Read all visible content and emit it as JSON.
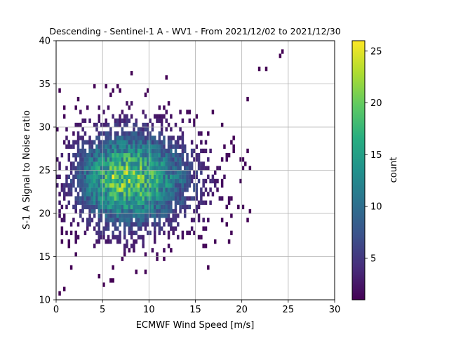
{
  "chart_data": {
    "type": "heatmap",
    "subtype": "2d-histogram",
    "title": "Descending - Sentinel-1 A - WV1 - From 2021/12/02 to 2021/12/30",
    "xlabel": "ECMWF Wind Speed [m/s]",
    "ylabel": "S-1 A Signal to Noise ratio",
    "xlim": [
      0,
      30
    ],
    "ylim": [
      10,
      40
    ],
    "xticks": [
      "0",
      "5",
      "10",
      "15",
      "20",
      "25",
      "30"
    ],
    "yticks": [
      "10",
      "15",
      "20",
      "25",
      "30",
      "35",
      "40"
    ],
    "grid": true,
    "colormap": "viridis",
    "colorbar": {
      "label": "count",
      "range": [
        1,
        26
      ],
      "ticks": [
        "5",
        "10",
        "15",
        "20",
        "25"
      ]
    },
    "bin_size": {
      "x": 0.25,
      "y": 0.5
    },
    "distribution": {
      "peak_x": 7.5,
      "peak_y": 24,
      "max_count": 26,
      "x_extent": [
        0,
        24.5
      ],
      "y_extent": [
        10.5,
        39
      ]
    }
  }
}
